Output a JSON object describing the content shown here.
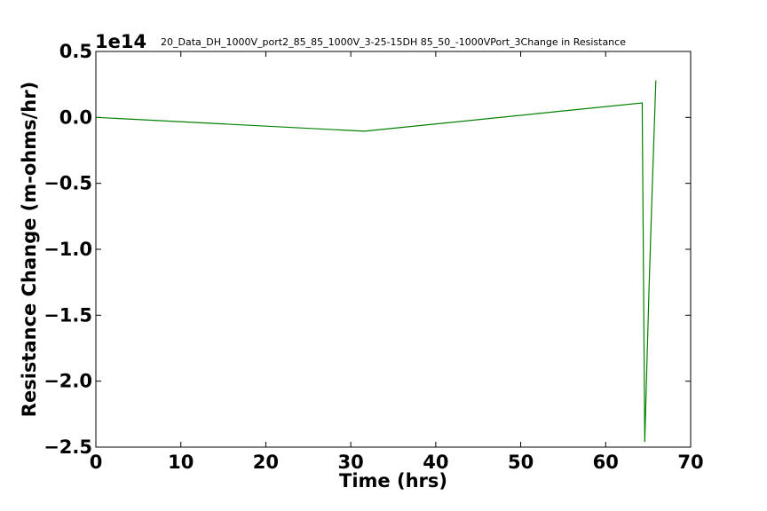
{
  "chart_data": {
    "type": "line",
    "title": "20_Data_DH_1000V_port2_85_85_1000V_3-25-15DH 85_50_-1000VPort_3Change in Resistance",
    "xlabel": "Time (hrs)",
    "ylabel": "Resistance Change (m-ohms/hr)",
    "y_offset_label": "1e14",
    "xlim": [
      0,
      70
    ],
    "ylim": [
      -2.5,
      0.5
    ],
    "x_ticks": [
      0,
      10,
      20,
      30,
      40,
      50,
      60,
      70
    ],
    "x_tick_labels": [
      "0",
      "10",
      "20",
      "30",
      "40",
      "50",
      "60",
      "70"
    ],
    "y_ticks": [
      0.5,
      0.0,
      -0.5,
      -1.0,
      -1.5,
      -2.0,
      -2.5
    ],
    "y_tick_labels": [
      "0.5",
      "0.0",
      "−0.5",
      "−1.0",
      "−1.5",
      "−2.0",
      "−2.5"
    ],
    "grid": false,
    "line_color": "#008000",
    "series": [
      {
        "x": [
          0,
          31.6,
          64.3,
          64.6,
          65.1,
          65.5,
          65.9
        ],
        "y": [
          0.0,
          -0.105,
          0.11,
          -2.46,
          -1.3,
          -0.5,
          0.28
        ]
      }
    ]
  }
}
